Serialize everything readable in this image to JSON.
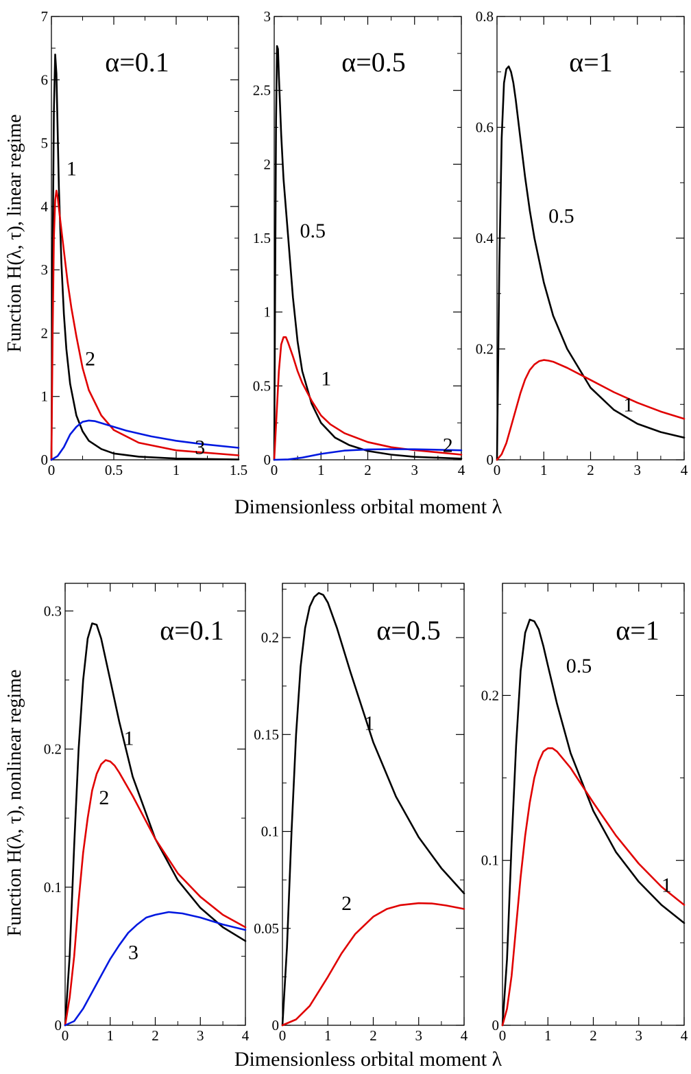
{
  "figure": {
    "top_xlabel": "Dimensionless orbital moment λ",
    "bottom_xlabel": "Dimensionless orbital moment λ",
    "top_ylabel": "Function H(λ, τ), linear regime",
    "bottom_ylabel": "Function H(λ, τ), nonlinear regime"
  },
  "colors": {
    "black": "#000000",
    "red": "#e00000",
    "blue": "#0018e0"
  },
  "chart_data": [
    {
      "type": "line",
      "row": "top",
      "title": "α=0.1",
      "xlim": [
        0,
        1.5
      ],
      "ylim": [
        0,
        7
      ],
      "xticks": [
        0,
        0.5,
        1,
        1.5
      ],
      "xtick_labels": [
        "0",
        "0.5",
        "1",
        "1.5"
      ],
      "yticks": [
        0,
        1,
        2,
        3,
        4,
        5,
        6,
        7
      ],
      "ytick_labels": [
        "0",
        "1",
        "2",
        "3",
        "4",
        "5",
        "6",
        "7"
      ],
      "grid": false,
      "series": [
        {
          "name": "1",
          "color": "black",
          "x": [
            0,
            0.01,
            0.02,
            0.03,
            0.04,
            0.05,
            0.06,
            0.08,
            0.1,
            0.12,
            0.15,
            0.2,
            0.25,
            0.3,
            0.4,
            0.5,
            0.7,
            1.0,
            1.5
          ],
          "y": [
            0,
            3.2,
            5.5,
            6.4,
            6.1,
            5.2,
            4.3,
            3.1,
            2.3,
            1.75,
            1.2,
            0.7,
            0.45,
            0.3,
            0.17,
            0.1,
            0.05,
            0.02,
            0.005
          ]
        },
        {
          "name": "2",
          "color": "red",
          "x": [
            0,
            0.01,
            0.02,
            0.03,
            0.04,
            0.05,
            0.07,
            0.1,
            0.13,
            0.16,
            0.2,
            0.25,
            0.3,
            0.4,
            0.5,
            0.7,
            1.0,
            1.5
          ],
          "y": [
            0,
            2.0,
            3.5,
            4.1,
            4.25,
            4.15,
            3.8,
            3.3,
            2.8,
            2.4,
            1.95,
            1.45,
            1.1,
            0.7,
            0.47,
            0.27,
            0.15,
            0.07
          ]
        },
        {
          "name": "3",
          "color": "blue",
          "x": [
            0,
            0.05,
            0.1,
            0.15,
            0.2,
            0.25,
            0.3,
            0.35,
            0.4,
            0.5,
            0.6,
            0.8,
            1.0,
            1.2,
            1.5
          ],
          "y": [
            0,
            0.06,
            0.2,
            0.4,
            0.52,
            0.6,
            0.62,
            0.61,
            0.58,
            0.52,
            0.46,
            0.37,
            0.3,
            0.25,
            0.19
          ]
        }
      ],
      "annotations": [
        {
          "text": "1",
          "x": 0.12,
          "y": 4.6
        },
        {
          "text": "2",
          "x": 0.27,
          "y": 1.6
        },
        {
          "text": "3",
          "x": 1.15,
          "y": 0.2
        }
      ]
    },
    {
      "type": "line",
      "row": "top",
      "title": "α=0.5",
      "xlim": [
        0,
        4
      ],
      "ylim": [
        0,
        3
      ],
      "xticks": [
        0,
        1,
        2,
        3,
        4
      ],
      "xtick_labels": [
        "0",
        "1",
        "2",
        "3",
        "4"
      ],
      "yticks": [
        0,
        0.5,
        1,
        1.5,
        2,
        2.5,
        3
      ],
      "ytick_labels": [
        "0",
        "0.5",
        "1",
        "1.5",
        "2",
        "2.5",
        "3"
      ],
      "grid": false,
      "series": [
        {
          "name": "0.5",
          "color": "black",
          "x": [
            0,
            0.02,
            0.04,
            0.06,
            0.08,
            0.1,
            0.15,
            0.2,
            0.3,
            0.4,
            0.5,
            0.6,
            0.8,
            1.0,
            1.3,
            1.6,
            2.0,
            2.5,
            3.0,
            4.0
          ],
          "y": [
            0,
            1.2,
            2.3,
            2.8,
            2.78,
            2.6,
            2.2,
            1.9,
            1.5,
            1.1,
            0.8,
            0.6,
            0.38,
            0.25,
            0.15,
            0.1,
            0.06,
            0.035,
            0.02,
            0.008
          ]
        },
        {
          "name": "1",
          "color": "red",
          "x": [
            0,
            0.05,
            0.1,
            0.15,
            0.2,
            0.25,
            0.3,
            0.4,
            0.5,
            0.6,
            0.8,
            1.0,
            1.2,
            1.5,
            2.0,
            2.5,
            3.0,
            3.5,
            4.0
          ],
          "y": [
            0,
            0.3,
            0.6,
            0.78,
            0.83,
            0.83,
            0.79,
            0.7,
            0.6,
            0.52,
            0.4,
            0.3,
            0.24,
            0.18,
            0.12,
            0.085,
            0.065,
            0.05,
            0.035
          ]
        },
        {
          "name": "2",
          "color": "blue",
          "x": [
            0,
            0.3,
            0.6,
            1.0,
            1.5,
            2.0,
            2.5,
            3.0,
            3.5,
            4.0
          ],
          "y": [
            0,
            0.003,
            0.015,
            0.04,
            0.062,
            0.07,
            0.072,
            0.071,
            0.068,
            0.064
          ]
        }
      ],
      "annotations": [
        {
          "text": "0.5",
          "x": 0.55,
          "y": 1.55
        },
        {
          "text": "1",
          "x": 1.0,
          "y": 0.55
        },
        {
          "text": "2",
          "x": 3.6,
          "y": 0.1
        }
      ]
    },
    {
      "type": "line",
      "row": "top",
      "title": "α=1",
      "xlim": [
        0,
        4
      ],
      "ylim": [
        0,
        0.8
      ],
      "xticks": [
        0,
        1,
        2,
        3,
        4
      ],
      "xtick_labels": [
        "0",
        "1",
        "2",
        "3",
        "4"
      ],
      "yticks": [
        0,
        0.2,
        0.4,
        0.6,
        0.8
      ],
      "ytick_labels": [
        "0",
        "0.2",
        "0.4",
        "0.6",
        "0.8"
      ],
      "grid": false,
      "series": [
        {
          "name": "0.5",
          "color": "black",
          "x": [
            0,
            0.05,
            0.1,
            0.15,
            0.2,
            0.25,
            0.3,
            0.35,
            0.4,
            0.5,
            0.6,
            0.7,
            0.8,
            1.0,
            1.2,
            1.5,
            2.0,
            2.5,
            3.0,
            3.5,
            4.0
          ],
          "y": [
            0,
            0.35,
            0.58,
            0.68,
            0.705,
            0.71,
            0.7,
            0.68,
            0.65,
            0.58,
            0.51,
            0.45,
            0.4,
            0.32,
            0.26,
            0.2,
            0.13,
            0.09,
            0.065,
            0.05,
            0.04
          ]
        },
        {
          "name": "1",
          "color": "red",
          "x": [
            0,
            0.1,
            0.2,
            0.3,
            0.4,
            0.5,
            0.6,
            0.7,
            0.8,
            0.9,
            1.0,
            1.1,
            1.2,
            1.5,
            2.0,
            2.5,
            3.0,
            3.5,
            4.0
          ],
          "y": [
            0,
            0.01,
            0.03,
            0.06,
            0.09,
            0.12,
            0.145,
            0.162,
            0.172,
            0.178,
            0.18,
            0.179,
            0.177,
            0.166,
            0.144,
            0.122,
            0.103,
            0.087,
            0.074
          ]
        }
      ],
      "annotations": [
        {
          "text": "0.5",
          "x": 1.1,
          "y": 0.44
        },
        {
          "text": "1",
          "x": 2.7,
          "y": 0.1
        }
      ]
    },
    {
      "type": "line",
      "row": "bottom",
      "title": "α=0.1",
      "xlim": [
        0,
        4
      ],
      "ylim": [
        0,
        0.32
      ],
      "xticks": [
        0,
        1,
        2,
        3,
        4
      ],
      "xtick_labels": [
        "0",
        "1",
        "2",
        "3",
        "4"
      ],
      "yticks": [
        0,
        0.1,
        0.2,
        0.3
      ],
      "ytick_labels": [
        "0",
        "0.1",
        "0.2",
        "0.3"
      ],
      "grid": false,
      "series": [
        {
          "name": "1",
          "color": "black",
          "x": [
            0,
            0.1,
            0.2,
            0.3,
            0.4,
            0.5,
            0.6,
            0.7,
            0.8,
            1.0,
            1.2,
            1.5,
            2.0,
            2.5,
            3.0,
            3.5,
            4.0
          ],
          "y": [
            0,
            0.05,
            0.13,
            0.2,
            0.25,
            0.28,
            0.291,
            0.29,
            0.28,
            0.25,
            0.22,
            0.18,
            0.135,
            0.105,
            0.085,
            0.071,
            0.061
          ]
        },
        {
          "name": "2",
          "color": "red",
          "x": [
            0,
            0.1,
            0.2,
            0.3,
            0.4,
            0.5,
            0.6,
            0.7,
            0.8,
            0.9,
            1.0,
            1.1,
            1.2,
            1.5,
            2.0,
            2.5,
            3.0,
            3.5,
            4.0
          ],
          "y": [
            0,
            0.02,
            0.05,
            0.09,
            0.125,
            0.15,
            0.17,
            0.182,
            0.189,
            0.192,
            0.191,
            0.188,
            0.183,
            0.166,
            0.135,
            0.11,
            0.093,
            0.08,
            0.071
          ]
        },
        {
          "name": "3",
          "color": "blue",
          "x": [
            0,
            0.2,
            0.4,
            0.6,
            0.8,
            1.0,
            1.2,
            1.4,
            1.6,
            1.8,
            2.0,
            2.3,
            2.6,
            3.0,
            3.5,
            4.0
          ],
          "y": [
            0,
            0.003,
            0.012,
            0.024,
            0.036,
            0.048,
            0.058,
            0.067,
            0.073,
            0.078,
            0.08,
            0.082,
            0.081,
            0.078,
            0.073,
            0.069
          ]
        }
      ],
      "annotations": [
        {
          "text": "1",
          "x": 1.3,
          "y": 0.208
        },
        {
          "text": "2",
          "x": 0.75,
          "y": 0.165
        },
        {
          "text": "3",
          "x": 1.4,
          "y": 0.053
        }
      ]
    },
    {
      "type": "line",
      "row": "bottom",
      "title": "α=0.5",
      "xlim": [
        0,
        4
      ],
      "ylim": [
        0,
        0.228
      ],
      "xticks": [
        0,
        1,
        2,
        3,
        4
      ],
      "xtick_labels": [
        "0",
        "1",
        "2",
        "3",
        "4"
      ],
      "yticks": [
        0,
        0.05,
        0.1,
        0.15,
        0.2
      ],
      "ytick_labels": [
        "0",
        "0.05",
        "0.1",
        "0.15",
        "0.2"
      ],
      "grid": false,
      "series": [
        {
          "name": "1",
          "color": "black",
          "x": [
            0,
            0.1,
            0.2,
            0.3,
            0.4,
            0.5,
            0.6,
            0.7,
            0.8,
            0.9,
            1.0,
            1.2,
            1.5,
            2.0,
            2.5,
            3.0,
            3.5,
            4.0
          ],
          "y": [
            0,
            0.04,
            0.1,
            0.15,
            0.185,
            0.205,
            0.216,
            0.221,
            0.223,
            0.222,
            0.218,
            0.205,
            0.182,
            0.146,
            0.118,
            0.097,
            0.081,
            0.068
          ]
        },
        {
          "name": "2",
          "color": "red",
          "x": [
            0,
            0.3,
            0.6,
            1.0,
            1.3,
            1.6,
            2.0,
            2.3,
            2.6,
            3.0,
            3.3,
            3.6,
            4.0
          ],
          "y": [
            0,
            0.003,
            0.01,
            0.025,
            0.037,
            0.047,
            0.056,
            0.06,
            0.062,
            0.063,
            0.0628,
            0.0618,
            0.06
          ]
        }
      ],
      "annotations": [
        {
          "text": "1",
          "x": 1.8,
          "y": 0.156
        },
        {
          "text": "2",
          "x": 1.3,
          "y": 0.063
        }
      ]
    },
    {
      "type": "line",
      "row": "bottom",
      "title": "α=1",
      "xlim": [
        0,
        4
      ],
      "ylim": [
        0,
        0.268
      ],
      "xticks": [
        0,
        1,
        2,
        3,
        4
      ],
      "xtick_labels": [
        "0",
        "1",
        "2",
        "3",
        "4"
      ],
      "yticks": [
        0,
        0.1,
        0.2
      ],
      "ytick_labels": [
        "0",
        "0.1",
        "0.2"
      ],
      "grid": false,
      "series": [
        {
          "name": "0.5",
          "color": "black",
          "x": [
            0,
            0.1,
            0.2,
            0.3,
            0.4,
            0.5,
            0.6,
            0.7,
            0.8,
            0.9,
            1.0,
            1.2,
            1.5,
            2.0,
            2.5,
            3.0,
            3.5,
            4.0
          ],
          "y": [
            0,
            0.04,
            0.11,
            0.17,
            0.215,
            0.238,
            0.246,
            0.245,
            0.24,
            0.23,
            0.218,
            0.195,
            0.165,
            0.13,
            0.105,
            0.087,
            0.073,
            0.062
          ]
        },
        {
          "name": "1",
          "color": "red",
          "x": [
            0,
            0.1,
            0.2,
            0.3,
            0.4,
            0.5,
            0.6,
            0.7,
            0.8,
            0.9,
            1.0,
            1.1,
            1.2,
            1.5,
            2.0,
            2.5,
            3.0,
            3.5,
            4.0
          ],
          "y": [
            0,
            0.01,
            0.03,
            0.06,
            0.09,
            0.115,
            0.135,
            0.15,
            0.16,
            0.166,
            0.168,
            0.168,
            0.166,
            0.156,
            0.135,
            0.115,
            0.098,
            0.084,
            0.073
          ]
        }
      ],
      "annotations": [
        {
          "text": "0.5",
          "x": 1.4,
          "y": 0.218
        },
        {
          "text": "1",
          "x": 3.5,
          "y": 0.085
        }
      ]
    }
  ]
}
